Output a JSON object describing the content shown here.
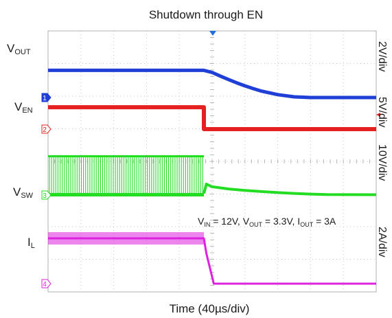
{
  "chart_data": {
    "type": "line",
    "title": "Shutdown through EN",
    "xlabel": "Time (40µs/div)",
    "x_unit": "µs",
    "x_divisions": 10,
    "x_div_size_us": 40,
    "y_divisions": 8,
    "grid": true,
    "channels": [
      {
        "id": "1",
        "label_main": "V",
        "label_sub": "OUT",
        "scale_text": "2V/div",
        "color": "#1f3fd6",
        "volts_per_div": 2,
        "ground_marker": "1",
        "x": [
          0,
          190,
          200,
          210,
          220,
          230,
          240,
          250,
          260,
          280,
          300,
          320,
          340,
          360,
          400
        ],
        "y": [
          3.3,
          3.3,
          3.04,
          2.6,
          2.18,
          1.78,
          1.42,
          1.08,
          0.78,
          0.35,
          0.08,
          0.0,
          0.0,
          0.0,
          0.0
        ]
      },
      {
        "id": "2",
        "label_main": "V",
        "label_sub": "EN",
        "scale_text": "5V/div",
        "color": "#e52020",
        "volts_per_div": 5,
        "ground_marker": "2",
        "x": [
          0,
          190,
          190,
          400
        ],
        "y": [
          5.5,
          5.5,
          0.0,
          0.0
        ]
      },
      {
        "id": "3",
        "label_main": "V",
        "label_sub": "SW",
        "scale_text": "10V/div",
        "color": "#22dd22",
        "volts_per_div": 10,
        "ground_marker": "3",
        "switching_until_us": 190,
        "switching_high_v": 12,
        "x": [
          190,
          193,
          200,
          220,
          240,
          260,
          280,
          300,
          320,
          340,
          400
        ],
        "y": [
          0.5,
          3.3,
          2.5,
          1.85,
          1.4,
          1.05,
          0.75,
          0.5,
          0.3,
          0.15,
          0.1
        ]
      },
      {
        "id": "4",
        "label_main": "I",
        "label_sub": "L",
        "scale_text": "2A/div",
        "color": "#dd22dd",
        "amps_per_div": 2,
        "ground_marker": "4",
        "x": [
          0,
          190,
          193,
          202,
          400
        ],
        "y": [
          3.0,
          3.0,
          2.0,
          0.0,
          0.0
        ]
      }
    ],
    "annotation": {
      "parts": [
        {
          "t": "V"
        },
        {
          "t": "IN",
          "sub": true
        },
        {
          "t": " = 12V, V"
        },
        {
          "t": "OUT",
          "sub": true
        },
        {
          "t": " = 3.3V, I"
        },
        {
          "t": "OUT",
          "sub": true
        },
        {
          "t": " = 3A"
        }
      ]
    }
  }
}
